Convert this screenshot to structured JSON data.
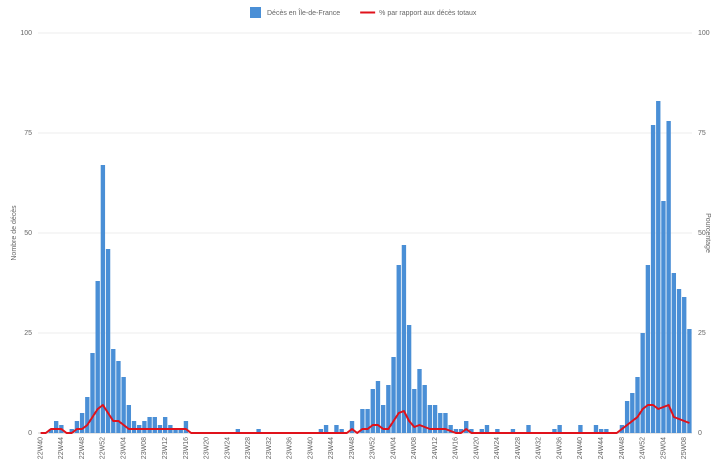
{
  "chart_data": {
    "type": "bar-line",
    "y_label": "Nombre de décès",
    "y2_label": "Pourcentage",
    "categories": [
      "22W40",
      null,
      null,
      null,
      "22W44",
      null,
      null,
      null,
      "22W48",
      null,
      null,
      null,
      "22W52",
      null,
      null,
      null,
      "23W04",
      null,
      null,
      null,
      "23W08",
      null,
      null,
      null,
      "23W12",
      null,
      null,
      null,
      "23W16",
      null,
      null,
      null,
      "23W20",
      null,
      null,
      null,
      "23W24",
      null,
      null,
      null,
      "23W28",
      null,
      null,
      null,
      "23W32",
      null,
      null,
      null,
      "23W36",
      null,
      null,
      null,
      "23W40",
      null,
      null,
      null,
      "23W44",
      null,
      null,
      null,
      "23W48",
      null,
      null,
      null,
      "23W52",
      null,
      null,
      null,
      "24W04",
      null,
      null,
      null,
      "24W08",
      null,
      null,
      null,
      "24W12",
      null,
      null,
      null,
      "24W16",
      null,
      null,
      null,
      "24W20",
      null,
      null,
      null,
      "24W24",
      null,
      null,
      null,
      "24W28",
      null,
      null,
      null,
      "24W32",
      null,
      null,
      null,
      "24W36",
      null,
      null,
      null,
      "24W40",
      null,
      null,
      null,
      "24W44",
      null,
      null,
      null,
      "24W48",
      null,
      null,
      null,
      "24W52",
      null,
      null,
      null,
      "25W04",
      null,
      null,
      null,
      "25W08",
      null
    ],
    "series": [
      {
        "name": "Décès en Île-de-France",
        "type": "bar",
        "color": "#4a8fd6",
        "values": [
          0,
          0,
          1,
          3,
          2,
          0,
          1,
          3,
          5,
          9,
          20,
          38,
          67,
          46,
          21,
          18,
          14,
          7,
          3,
          2,
          3,
          4,
          4,
          2,
          4,
          2,
          1,
          1,
          3,
          0,
          0,
          0,
          0,
          0,
          0,
          0,
          0,
          0,
          1,
          0,
          0,
          0,
          1,
          0,
          0,
          0,
          0,
          0,
          0,
          0,
          0,
          0,
          0,
          0,
          1,
          2,
          0,
          2,
          1,
          0,
          3,
          0,
          6,
          6,
          11,
          13,
          7,
          12,
          19,
          42,
          47,
          27,
          11,
          16,
          12,
          7,
          7,
          5,
          5,
          2,
          1,
          1,
          3,
          1,
          0,
          1,
          2,
          0,
          1,
          0,
          0,
          1,
          0,
          0,
          2,
          0,
          0,
          0,
          0,
          1,
          2,
          0,
          0,
          0,
          2,
          0,
          0,
          2,
          1,
          1,
          0,
          0,
          2,
          8,
          10,
          14,
          25,
          42,
          77,
          83,
          58,
          78,
          40,
          36,
          34,
          26
        ]
      },
      {
        "name": "% par rapport aux décès totaux",
        "type": "line",
        "axis": "y2",
        "color": "#e0121b",
        "values": [
          0,
          0,
          1,
          1,
          1,
          0,
          0,
          1,
          1,
          2,
          4,
          6,
          7,
          5,
          3,
          3,
          2,
          1,
          1,
          1,
          1,
          1,
          1,
          1,
          1,
          1,
          1,
          1,
          1,
          0,
          0,
          0,
          0,
          0,
          0,
          0,
          0,
          0,
          0,
          0,
          0,
          0,
          0,
          0,
          0,
          0,
          0,
          0,
          0,
          0,
          0,
          0,
          0,
          0,
          0,
          0,
          0,
          0,
          0,
          0,
          1,
          0,
          1,
          1,
          2,
          2,
          1,
          1,
          3,
          5,
          5.5,
          3,
          1.5,
          2,
          1.5,
          1,
          1,
          1,
          1,
          0.5,
          0,
          0,
          1,
          0,
          0,
          0,
          0,
          0,
          0,
          0,
          0,
          0,
          0,
          0,
          0,
          0,
          0,
          0,
          0,
          0,
          0,
          0,
          0,
          0,
          0,
          0,
          0,
          0,
          0,
          0,
          0,
          0,
          1,
          2,
          3,
          4,
          6,
          7,
          7,
          6,
          6.5,
          7,
          4,
          3.5,
          3,
          2.5
        ]
      }
    ],
    "ylim": [
      0,
      100
    ],
    "yticks": [
      0,
      25,
      50,
      75,
      100
    ],
    "y2lim": [
      0,
      100
    ],
    "y2ticks": [
      0,
      25,
      50,
      75,
      100
    ],
    "grid": true,
    "legend": "top"
  }
}
